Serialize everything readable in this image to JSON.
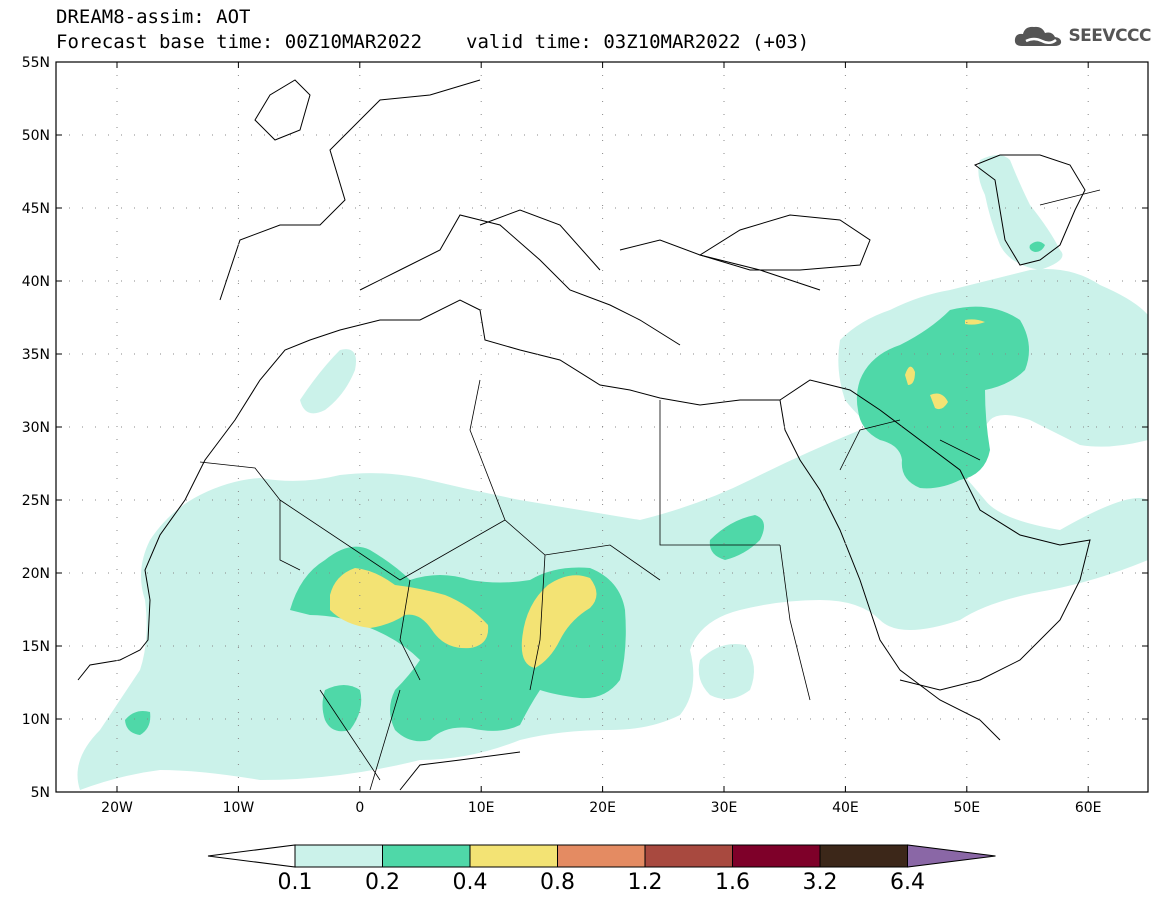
{
  "title": {
    "line1": "DREAM8-assim: AOT",
    "base": "Forecast base time: 00Z10MAR2022",
    "valid": "valid time: 03Z10MAR2022 (+03)"
  },
  "logo": {
    "text": "SEEVCCC",
    "icon": "cloud-icon"
  },
  "map": {
    "lat_labels": [
      "55N",
      "50N",
      "45N",
      "40N",
      "35N",
      "30N",
      "25N",
      "20N",
      "15N",
      "10N",
      "5N"
    ],
    "lon_labels": [
      "20W",
      "10W",
      "0",
      "10E",
      "20E",
      "30E",
      "40E",
      "50E",
      "60E"
    ]
  },
  "colorbar": {
    "labels": [
      "0.1",
      "0.2",
      "0.4",
      "0.8",
      "1.2",
      "1.6",
      "3.2",
      "6.4"
    ],
    "colors": [
      "#cbf2ea",
      "#4fd8a8",
      "#f3e374",
      "#e48b62",
      "#a8493f",
      "#7e0029",
      "#3c2719",
      "#8a67a6"
    ],
    "under_color": "#ffffff"
  },
  "palette": {
    "aot_01": "#cbf2ea",
    "aot_02": "#4fd8a8",
    "aot_04": "#f3e374"
  }
}
